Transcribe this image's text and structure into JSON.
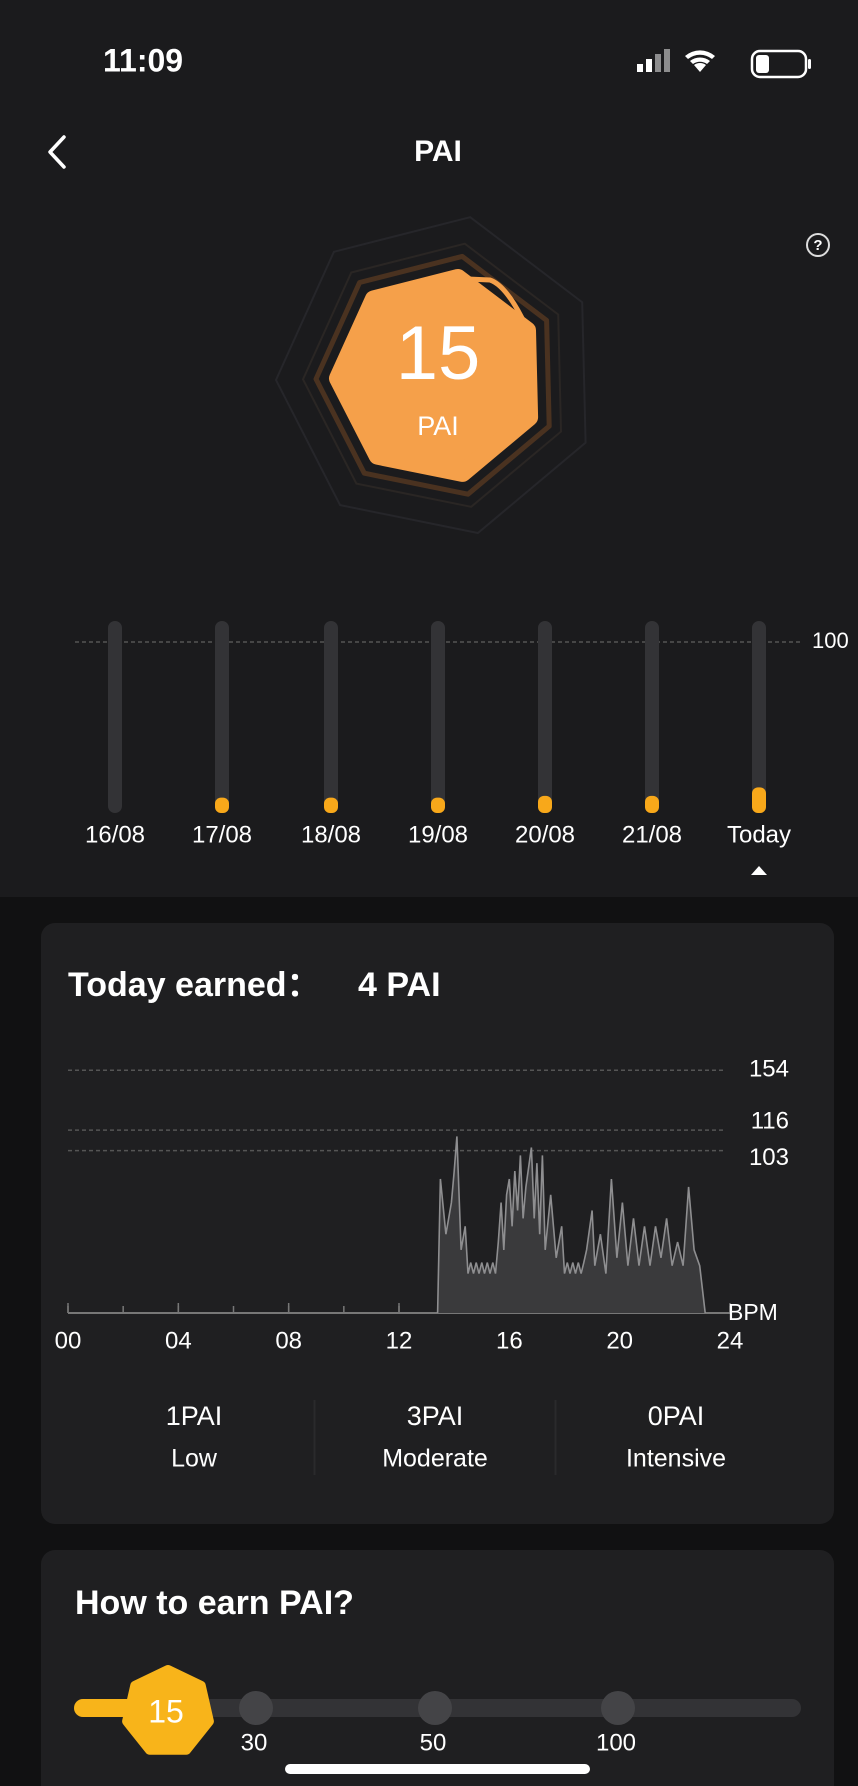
{
  "status_bar": {
    "time": "11:09"
  },
  "header": {
    "title": "PAI"
  },
  "score": {
    "value": "15",
    "unit": "PAI"
  },
  "weekly": {
    "type": "bar",
    "reference": 100,
    "categories": [
      "16/08",
      "17/08",
      "18/08",
      "19/08",
      "20/08",
      "21/08",
      "Today"
    ],
    "values": [
      0,
      9,
      9,
      9,
      10,
      10,
      15
    ],
    "color": "#f8a81a"
  },
  "today_card": {
    "title": "Today earned：",
    "earned": "4 PAI",
    "heart_rate": {
      "type": "line",
      "y_label": "BPM",
      "xlim": [
        0,
        24
      ],
      "ylim": [
        0,
        170
      ],
      "xticks": [
        {
          "value": 0,
          "label": "00"
        },
        {
          "value": 4,
          "label": "04"
        },
        {
          "value": 8,
          "label": "08"
        },
        12,
        16,
        20,
        24
      ],
      "thresholds": [
        {
          "value": 154,
          "color": "#e0453a"
        },
        {
          "value": 116,
          "color": "#a068f0"
        },
        {
          "value": 103,
          "color": "#2a9ad8"
        }
      ],
      "hours": [
        13.4,
        13.5,
        13.7,
        13.9,
        14.0,
        14.1,
        14.25,
        14.4,
        14.5,
        14.6,
        14.7,
        14.8,
        14.9,
        15.0,
        15.1,
        15.2,
        15.3,
        15.4,
        15.5,
        15.6,
        15.7,
        15.8,
        15.9,
        16.0,
        16.1,
        16.2,
        16.3,
        16.4,
        16.5,
        16.6,
        16.8,
        16.9,
        17.0,
        17.1,
        17.2,
        17.3,
        17.5,
        17.7,
        17.9,
        18.0,
        18.1,
        18.2,
        18.3,
        18.4,
        18.5,
        18.6,
        18.7,
        18.8,
        19.0,
        19.1,
        19.3,
        19.5,
        19.7,
        19.9,
        20.1,
        20.3,
        20.5,
        20.7,
        20.9,
        21.1,
        21.3,
        21.5,
        21.7,
        21.9,
        22.1,
        22.3,
        22.5,
        22.7,
        22.9,
        23.1
      ],
      "bpm": [
        0,
        85,
        50,
        70,
        90,
        112,
        40,
        55,
        25,
        32,
        25,
        32,
        25,
        32,
        25,
        32,
        25,
        32,
        25,
        45,
        70,
        40,
        75,
        85,
        55,
        90,
        65,
        100,
        60,
        80,
        105,
        60,
        95,
        50,
        100,
        40,
        75,
        35,
        55,
        25,
        32,
        25,
        32,
        25,
        32,
        25,
        32,
        40,
        65,
        30,
        50,
        25,
        85,
        35,
        70,
        30,
        60,
        30,
        55,
        30,
        55,
        35,
        60,
        30,
        45,
        30,
        80,
        40,
        30,
        0
      ]
    },
    "zones": [
      {
        "value": "1PAI",
        "label": "Low",
        "color": "#2a9ad8"
      },
      {
        "value": "3PAI",
        "label": "Moderate",
        "color": "#a068f0"
      },
      {
        "value": "0PAI",
        "label": "Intensive",
        "color": "#e0453a"
      }
    ]
  },
  "earn_card": {
    "title": "How to earn PAI?",
    "current": "15",
    "steps": [
      "30",
      "50",
      "100"
    ]
  }
}
